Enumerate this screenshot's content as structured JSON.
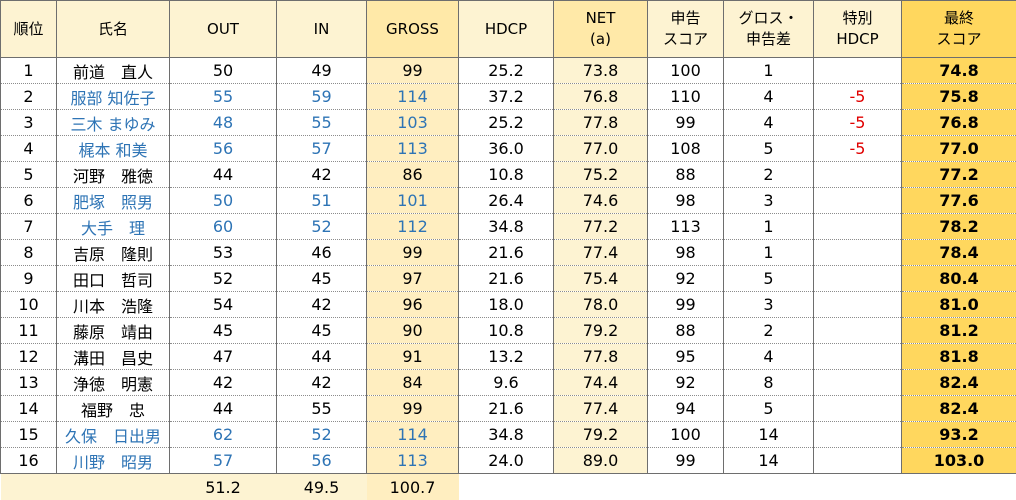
{
  "headers": {
    "rank": "順位",
    "name": "氏名",
    "out": "OUT",
    "in": "IN",
    "gross": "GROSS",
    "hdcp": "HDCP",
    "net_line1": "NET",
    "net_line2": "(a)",
    "declared_line1": "申告",
    "declared_line2": "スコア",
    "diff_line1": "グロス・",
    "diff_line2": "申告差",
    "special_line1": "特別",
    "special_line2": "HDCP",
    "final_line1": "最終",
    "final_line2": "スコア"
  },
  "rows": [
    {
      "rank": "1",
      "name": "前道　直人",
      "out": "50",
      "in": "49",
      "gross": "99",
      "hdcp": "25.2",
      "net": "73.8",
      "declared": "100",
      "diff": "1",
      "special": "",
      "final": "74.8",
      "name_blue": false
    },
    {
      "rank": "2",
      "name": "服部 知佐子",
      "out": "55",
      "in": "59",
      "gross": "114",
      "hdcp": "37.2",
      "net": "76.8",
      "declared": "110",
      "diff": "4",
      "special": "-5",
      "final": "75.8",
      "name_blue": true
    },
    {
      "rank": "3",
      "name": "三木 まゆみ",
      "out": "48",
      "in": "55",
      "gross": "103",
      "hdcp": "25.2",
      "net": "77.8",
      "declared": "99",
      "diff": "4",
      "special": "-5",
      "final": "76.8",
      "name_blue": true
    },
    {
      "rank": "4",
      "name": "梶本 和美",
      "out": "56",
      "in": "57",
      "gross": "113",
      "hdcp": "36.0",
      "net": "77.0",
      "declared": "108",
      "diff": "5",
      "special": "-5",
      "final": "77.0",
      "name_blue": true
    },
    {
      "rank": "5",
      "name": "河野　雅徳",
      "out": "44",
      "in": "42",
      "gross": "86",
      "hdcp": "10.8",
      "net": "75.2",
      "declared": "88",
      "diff": "2",
      "special": "",
      "final": "77.2",
      "name_blue": false
    },
    {
      "rank": "6",
      "name": "肥塚　照男",
      "out": "50",
      "in": "51",
      "gross": "101",
      "hdcp": "26.4",
      "net": "74.6",
      "declared": "98",
      "diff": "3",
      "special": "",
      "final": "77.6",
      "name_blue": true
    },
    {
      "rank": "7",
      "name": "大手　理",
      "out": "60",
      "in": "52",
      "gross": "112",
      "hdcp": "34.8",
      "net": "77.2",
      "declared": "113",
      "diff": "1",
      "special": "",
      "final": "78.2",
      "name_blue": true
    },
    {
      "rank": "8",
      "name": "吉原　隆則",
      "out": "53",
      "in": "46",
      "gross": "99",
      "hdcp": "21.6",
      "net": "77.4",
      "declared": "98",
      "diff": "1",
      "special": "",
      "final": "78.4",
      "name_blue": false
    },
    {
      "rank": "9",
      "name": "田口　哲司",
      "out": "52",
      "in": "45",
      "gross": "97",
      "hdcp": "21.6",
      "net": "75.4",
      "declared": "92",
      "diff": "5",
      "special": "",
      "final": "80.4",
      "name_blue": false
    },
    {
      "rank": "10",
      "name": "川本　浩隆",
      "out": "54",
      "in": "42",
      "gross": "96",
      "hdcp": "18.0",
      "net": "78.0",
      "declared": "99",
      "diff": "3",
      "special": "",
      "final": "81.0",
      "name_blue": false
    },
    {
      "rank": "11",
      "name": "藤原　靖由",
      "out": "45",
      "in": "45",
      "gross": "90",
      "hdcp": "10.8",
      "net": "79.2",
      "declared": "88",
      "diff": "2",
      "special": "",
      "final": "81.2",
      "name_blue": false
    },
    {
      "rank": "12",
      "name": "溝田　昌史",
      "out": "47",
      "in": "44",
      "gross": "91",
      "hdcp": "13.2",
      "net": "77.8",
      "declared": "95",
      "diff": "4",
      "special": "",
      "final": "81.8",
      "name_blue": false
    },
    {
      "rank": "13",
      "name": "浄徳　明憲",
      "out": "42",
      "in": "42",
      "gross": "84",
      "hdcp": "9.6",
      "net": "74.4",
      "declared": "92",
      "diff": "8",
      "special": "",
      "final": "82.4",
      "name_blue": false
    },
    {
      "rank": "14",
      "name": "福野　忠",
      "out": "44",
      "in": "55",
      "gross": "99",
      "hdcp": "21.6",
      "net": "77.4",
      "declared": "94",
      "diff": "5",
      "special": "",
      "final": "82.4",
      "name_blue": false
    },
    {
      "rank": "15",
      "name": "久保　日出男",
      "out": "62",
      "in": "52",
      "gross": "114",
      "hdcp": "34.8",
      "net": "79.2",
      "declared": "100",
      "diff": "14",
      "special": "",
      "final": "93.2",
      "name_blue": true
    },
    {
      "rank": "16",
      "name": "川野　昭男",
      "out": "57",
      "in": "56",
      "gross": "113",
      "hdcp": "24.0",
      "net": "89.0",
      "declared": "99",
      "diff": "14",
      "special": "",
      "final": "103.0",
      "name_blue": true
    }
  ],
  "averages": {
    "out": "51.2",
    "in": "49.5",
    "gross": "100.7"
  },
  "colors": {
    "header_bg": "#fdf3d2",
    "gross_bg": "#ffeec0",
    "final_bg": "#ffd75e",
    "blue_text": "#2e74b5",
    "red_text": "#e00000",
    "border": "#6e6e6e"
  }
}
